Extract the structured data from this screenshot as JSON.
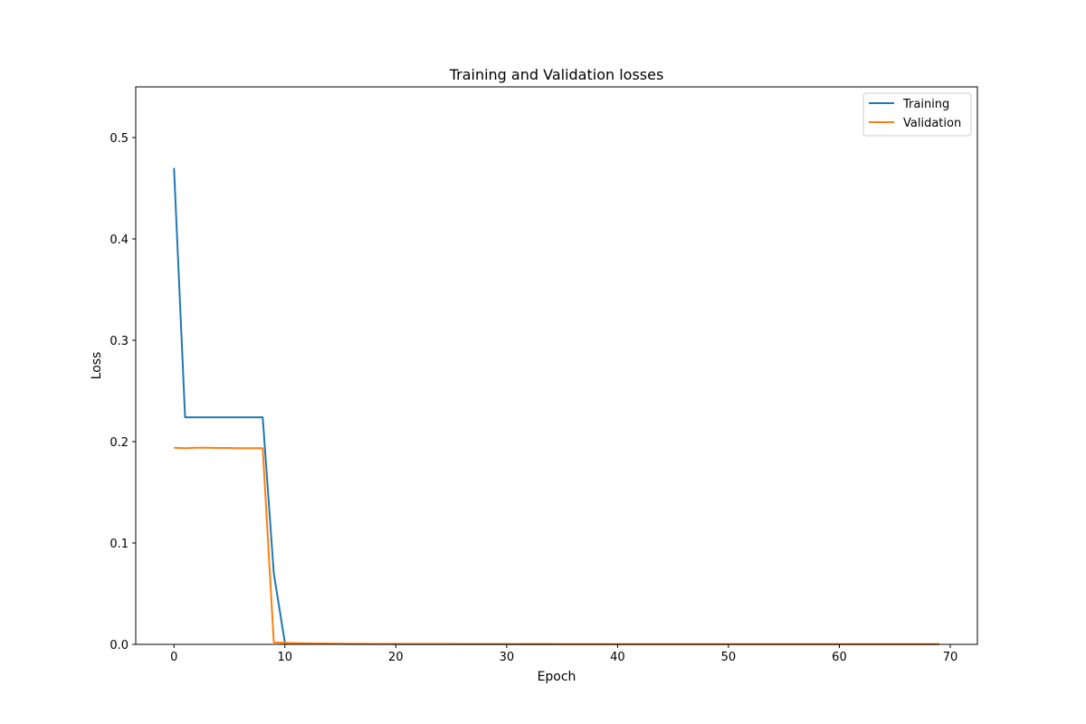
{
  "chart_data": {
    "type": "line",
    "title": "Training and Validation losses",
    "xlabel": "Epoch",
    "ylabel": "Loss",
    "xlim": [
      -3.45,
      72.45
    ],
    "ylim": [
      0,
      0.55
    ],
    "xticks": [
      0,
      10,
      20,
      30,
      40,
      50,
      60,
      70
    ],
    "yticks": [
      0.0,
      0.1,
      0.2,
      0.3,
      0.4,
      0.5
    ],
    "xtick_labels": [
      "0",
      "10",
      "20",
      "30",
      "40",
      "50",
      "60",
      "70"
    ],
    "ytick_labels": [
      "0.0",
      "0.1",
      "0.2",
      "0.3",
      "0.4",
      "0.5"
    ],
    "grid": false,
    "legend_position": "upper-right",
    "x": [
      0,
      1,
      2,
      3,
      4,
      5,
      6,
      7,
      8,
      9,
      10,
      11,
      12,
      13,
      14,
      15,
      16,
      17,
      18,
      19,
      20,
      21,
      22,
      23,
      24,
      25,
      26,
      27,
      28,
      29,
      30,
      31,
      32,
      33,
      34,
      35,
      36,
      37,
      38,
      39,
      40,
      41,
      42,
      43,
      44,
      45,
      46,
      47,
      48,
      49,
      50,
      51,
      52,
      53,
      54,
      55,
      56,
      57,
      58,
      59,
      60,
      61,
      62,
      63,
      64,
      65,
      66,
      67,
      68,
      69
    ],
    "series": [
      {
        "name": "Training",
        "color": "#1f77b4",
        "values": [
          0.47,
          0.224,
          0.224,
          0.224,
          0.224,
          0.224,
          0.224,
          0.224,
          0.224,
          0.07,
          0.0015,
          0.0008,
          0.0006,
          0.0005,
          0.0004,
          0.0004,
          0.0003,
          0.0003,
          0.0003,
          0.0003,
          0.0002,
          0.0002,
          0.0002,
          0.0002,
          0.0002,
          0.0002,
          0.0002,
          0.0002,
          0.0002,
          0.0002,
          0.0002,
          0.0001,
          0.0001,
          0.0001,
          0.0001,
          0.0001,
          0.0001,
          0.0001,
          0.0001,
          0.0001,
          0.0001,
          0.0001,
          0.0001,
          0.0001,
          0.0001,
          0.0001,
          0.0001,
          0.0001,
          0.0001,
          0.0001,
          0.0001,
          0.0001,
          0.0001,
          0.0001,
          0.0001,
          0.0001,
          0.0001,
          0.0001,
          0.0001,
          0.0001,
          0.0001,
          0.0001,
          0.0001,
          0.0001,
          0.0001,
          0.0001,
          0.0001,
          0.0001,
          0.0001,
          0.0001
        ]
      },
      {
        "name": "Validation",
        "color": "#ff7f0e",
        "values": [
          0.194,
          0.1935,
          0.194,
          0.194,
          0.1937,
          0.1937,
          0.1935,
          0.1935,
          0.1935,
          0.002,
          0.0015,
          0.0012,
          0.001,
          0.0009,
          0.0008,
          0.0007,
          0.0006,
          0.0006,
          0.0005,
          0.0005,
          0.0005,
          0.0004,
          0.0004,
          0.0004,
          0.0004,
          0.0004,
          0.0003,
          0.0003,
          0.0003,
          0.0003,
          0.0003,
          0.0003,
          0.0003,
          0.0003,
          0.0003,
          0.0002,
          0.0002,
          0.0002,
          0.0002,
          0.0002,
          0.0002,
          0.0002,
          0.0002,
          0.0002,
          0.0002,
          0.0002,
          0.0002,
          0.0002,
          0.0002,
          0.0002,
          0.0002,
          0.0002,
          0.0002,
          0.0002,
          0.0002,
          0.0002,
          0.0002,
          0.0002,
          0.0002,
          0.0002,
          0.0002,
          0.0002,
          0.0002,
          0.0002,
          0.0002,
          0.0002,
          0.0002,
          0.0002,
          0.0002,
          0.0002
        ]
      }
    ]
  }
}
